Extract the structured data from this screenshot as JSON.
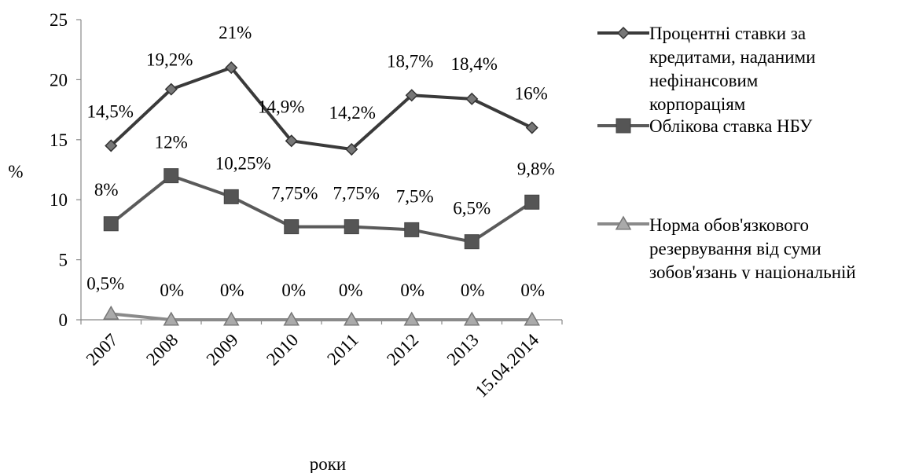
{
  "chart_data": {
    "type": "line",
    "title": "",
    "xlabel": "роки",
    "ylabel": "%",
    "ylim": [
      0,
      25
    ],
    "yticks": [
      "0",
      "5",
      "10",
      "15",
      "20",
      "25"
    ],
    "grid": false,
    "legend_position": "right",
    "categories": [
      "2007",
      "2008",
      "2009",
      "2010",
      "2011",
      "2012",
      "2013",
      "15.04.2014"
    ],
    "series": [
      {
        "name": "Процентні ставки за кредитами, наданими нефінансовим корпораціям",
        "legend_lines": [
          "Процентні ставки за",
          "кредитами, наданими",
          "нефінансовим",
          "корпораціям"
        ],
        "marker": "diamond",
        "color": "#3a3a3a",
        "values": [
          14.5,
          19.2,
          21,
          14.9,
          14.2,
          18.7,
          18.4,
          16
        ],
        "labels": [
          "14,5%",
          "19,2%",
          "21%",
          "14,9%",
          "14,2%",
          "18,7%",
          "18,4%",
          "16%"
        ]
      },
      {
        "name": "Облікова ставка НБУ",
        "legend_lines": [
          "Облікова ставка НБУ"
        ],
        "marker": "square",
        "color": "#5a5a5a",
        "values": [
          8,
          12,
          10.25,
          7.75,
          7.75,
          7.5,
          6.5,
          9.8
        ],
        "labels": [
          "8%",
          "12%",
          "10,25%",
          "7,75%",
          "7,75%",
          "7,5%",
          "6,5%",
          "9,8%"
        ]
      },
      {
        "name": "Норма обов'язкового резервування від суми зобов'язань у національній",
        "legend_lines": [
          "Норма обов'язкового",
          "резервування від суми",
          "зобов'язань у національній"
        ],
        "marker": "triangle",
        "color": "#8a8a8a",
        "values": [
          0.5,
          0,
          0,
          0,
          0,
          0,
          0,
          0
        ],
        "labels": [
          "0,5%",
          "0%",
          "0%",
          "0%",
          "0%",
          "0%",
          "0%",
          "0%"
        ]
      }
    ]
  }
}
